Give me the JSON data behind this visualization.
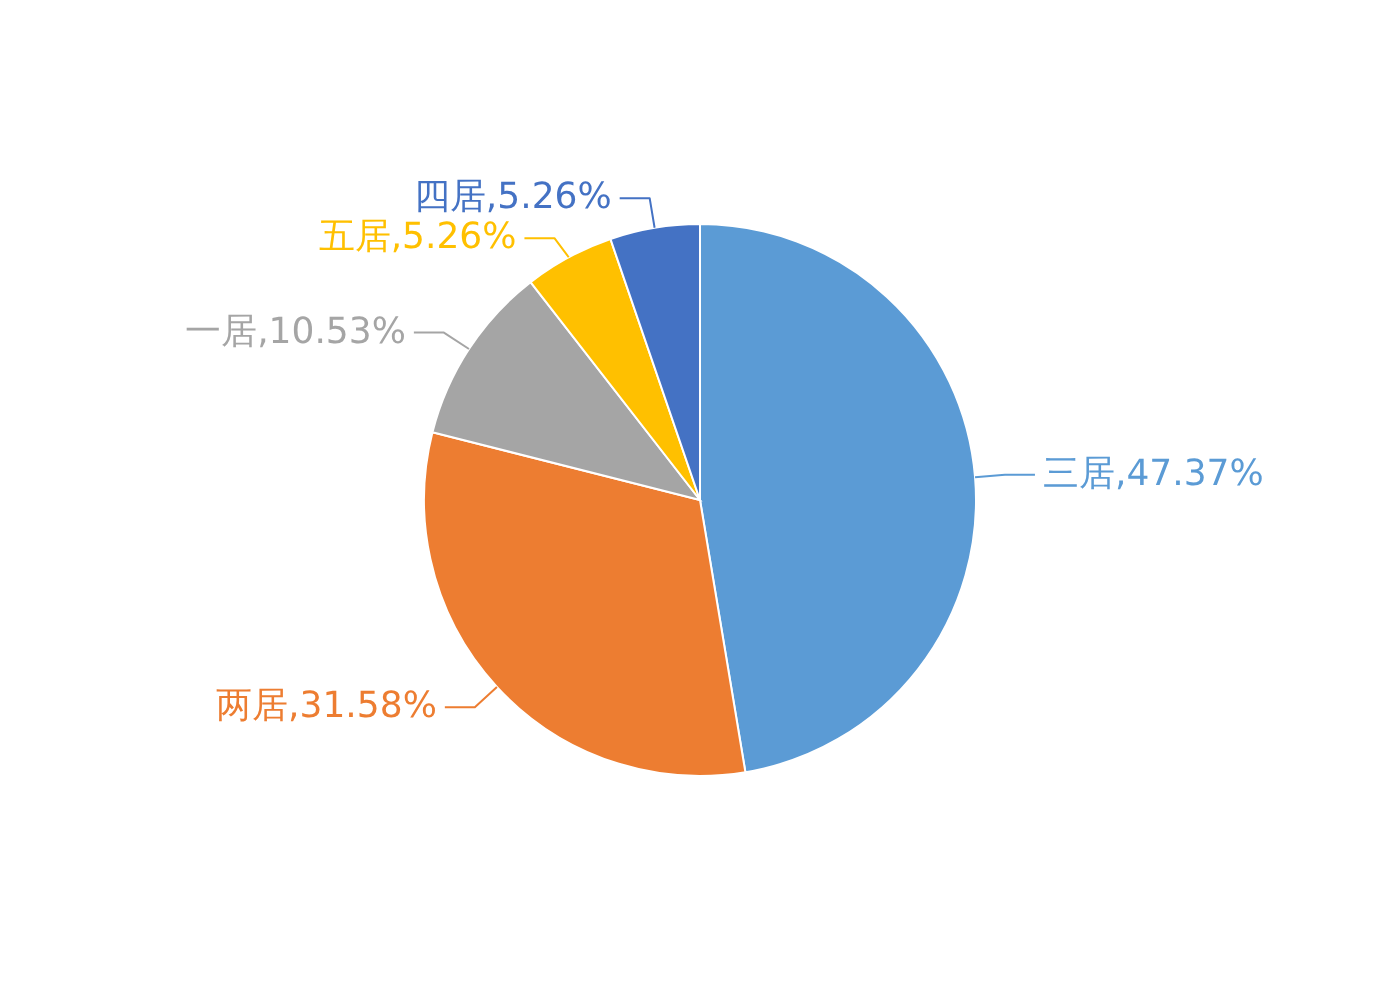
{
  "chart_data": {
    "type": "pie",
    "categories": [
      "三居",
      "两居",
      "一居",
      "五居",
      "四居"
    ],
    "values": [
      47.37,
      31.58,
      10.53,
      5.26,
      5.26
    ],
    "colors": [
      "#5b9bd5",
      "#ed7d31",
      "#a5a5a5",
      "#ffc000",
      "#4472c4"
    ],
    "value_labels": [
      "47.37%",
      "31.58%",
      "10.53%",
      "5.26%",
      "5.26%"
    ]
  }
}
